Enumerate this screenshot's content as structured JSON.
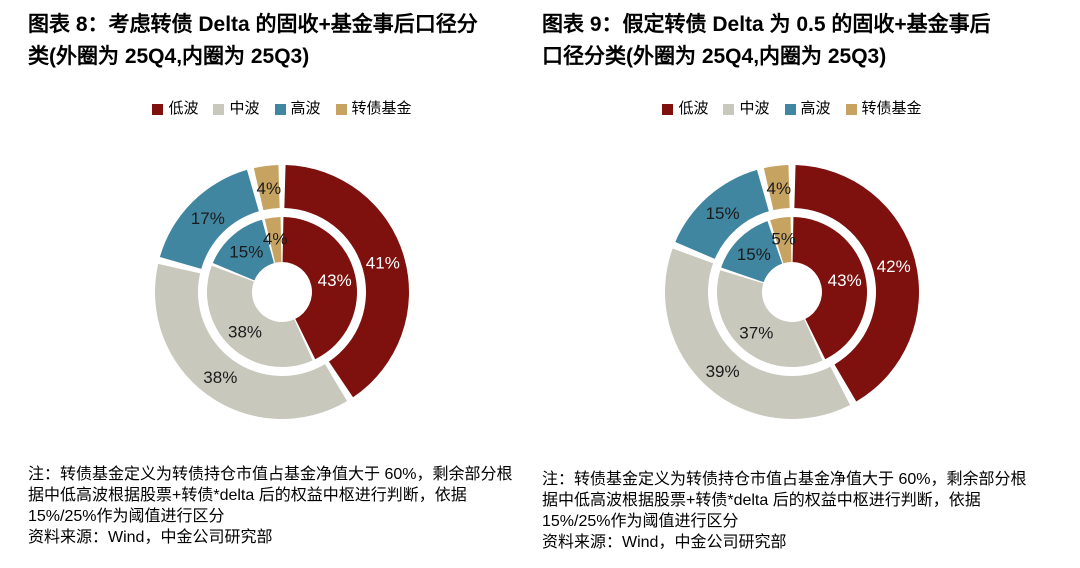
{
  "page": {
    "background": "#FFFFFF"
  },
  "colors": {
    "low_vol": "#7E110E",
    "mid_vol": "#C9C8BD",
    "high_vol": "#4186A0",
    "cb_fund": "#C7A361",
    "label_dark": "#1A1A1A",
    "label_light": "#FFFFFF"
  },
  "panels": [
    {
      "title": "图表 8：考虑转债 Delta 的固收+基金事后口径分\n类(外圈为 25Q4,内圈为 25Q3)",
      "note": "注：转债基金定义为转债持仓市值占基金净值大于 60%，剩余部分根\n据中低高波根据股票+转债*delta 后的权益中枢进行判断，依据\n15%/25%作为阈值进行区分",
      "source": "资料来源：Wind，中金公司研究部"
    },
    {
      "title": "图表 9：假定转债 Delta 为 0.5 的固收+基金事后\n口径分类(外圈为 25Q4,内圈为 25Q3)",
      "note": "注：转债基金定义为转债持仓市值占基金净值大于 60%，剩余部分根\n据中低高波根据股票+转债*delta 后的权益中枢进行判断，依据\n15%/25%作为阈值进行区分",
      "source": "资料来源：Wind，中金公司研究部"
    }
  ],
  "chart_data": [
    {
      "type": "pie",
      "subtype": "nested-donut",
      "title": "图表 8：考虑转债 Delta 的固收+基金事后口径分类(外圈为 25Q4,内圈为 25Q3)",
      "categories": [
        "低波",
        "中波",
        "高波",
        "转债基金"
      ],
      "colors": [
        "#7E110E",
        "#C9C8BD",
        "#4186A0",
        "#C7A361"
      ],
      "rings": [
        {
          "name": "25Q4",
          "position": "outer",
          "values": [
            41,
            38,
            17,
            4
          ]
        },
        {
          "name": "25Q3",
          "position": "inner",
          "values": [
            43,
            38,
            15,
            4
          ]
        }
      ],
      "label_format": "percent",
      "start_angle": "top",
      "direction": "clockwise",
      "legend_position": "top-center"
    },
    {
      "type": "pie",
      "subtype": "nested-donut",
      "title": "图表 9：假定转债 Delta 为 0.5 的固收+基金事后口径分类(外圈为 25Q4,内圈为 25Q3)",
      "categories": [
        "低波",
        "中波",
        "高波",
        "转债基金"
      ],
      "colors": [
        "#7E110E",
        "#C9C8BD",
        "#4186A0",
        "#C7A361"
      ],
      "rings": [
        {
          "name": "25Q4",
          "position": "outer",
          "values": [
            42,
            39,
            15,
            4
          ]
        },
        {
          "name": "25Q3",
          "position": "inner",
          "values": [
            43,
            37,
            15,
            5
          ]
        }
      ],
      "label_format": "percent",
      "start_angle": "top",
      "direction": "clockwise",
      "legend_position": "top-center"
    }
  ]
}
